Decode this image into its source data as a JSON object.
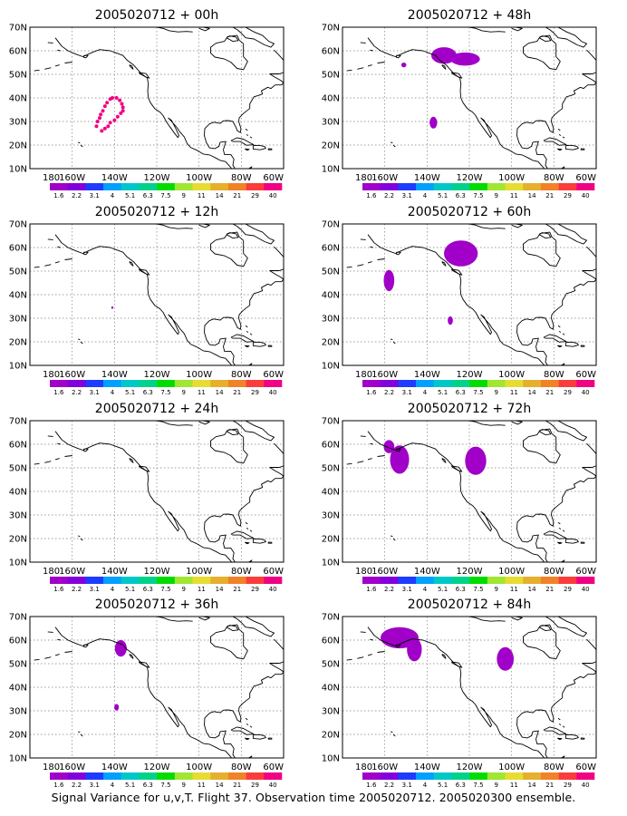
{
  "colorbar": {
    "labels": [
      "1.6",
      "2.2",
      "3.1",
      "4",
      "5.1",
      "6.3",
      "7.5",
      "9",
      "11",
      "14",
      "21",
      "29",
      "40"
    ],
    "colors": [
      "#a000c8",
      "#8200dc",
      "#1e3cff",
      "#00a0ff",
      "#00c8c8",
      "#00d28c",
      "#00dc00",
      "#a0e632",
      "#e6dc32",
      "#e6af2d",
      "#f08228",
      "#fa3c3c",
      "#f00082"
    ]
  },
  "axes": {
    "lon_labels": [
      "180",
      "160W",
      "140W",
      "120W",
      "100W",
      "80W",
      "60W"
    ],
    "lat_labels": [
      "10N",
      "20N",
      "30N",
      "40N",
      "50N",
      "60N",
      "70N"
    ],
    "lon_range": [
      -180,
      -60
    ],
    "lat_range": [
      10,
      70
    ]
  },
  "panels": [
    {
      "title": "2005020712 + 00h",
      "blobs": [],
      "dots": [
        [
          -141,
          40
        ],
        [
          -139,
          40
        ],
        [
          -137.5,
          39
        ],
        [
          -136.5,
          37.5
        ],
        [
          -136,
          36
        ],
        [
          -136,
          34.5
        ],
        [
          -137,
          33.5
        ],
        [
          -138.5,
          32
        ],
        [
          -140,
          30.5
        ],
        [
          -142,
          29.5
        ],
        [
          -143,
          28
        ],
        [
          -144.5,
          27
        ],
        [
          -146,
          26
        ],
        [
          -142,
          39.5
        ],
        [
          -143.5,
          38
        ],
        [
          -144.5,
          36.5
        ],
        [
          -145.5,
          34.5
        ],
        [
          -146.5,
          33
        ],
        [
          -147,
          31.5
        ],
        [
          -148,
          30
        ],
        [
          -148.5,
          28
        ]
      ]
    },
    {
      "title": "2005020712 + 48h",
      "blobs": [
        {
          "cx": -132,
          "cy": 58,
          "rx": 6,
          "ry": 3.5
        },
        {
          "cx": -122,
          "cy": 56.5,
          "rx": 7,
          "ry": 2.8
        },
        {
          "cx": -151,
          "cy": 54,
          "rx": 1.2,
          "ry": 1
        },
        {
          "cx": -137,
          "cy": 29.5,
          "rx": 1.8,
          "ry": 2.5
        }
      ],
      "dots": []
    },
    {
      "title": "2005020712 + 12h",
      "blobs": [
        {
          "cx": -141,
          "cy": 34.5,
          "rx": 0.5,
          "ry": 0.5
        }
      ],
      "dots": []
    },
    {
      "title": "2005020712 + 60h",
      "blobs": [
        {
          "cx": -124,
          "cy": 57.5,
          "rx": 8,
          "ry": 5.5
        },
        {
          "cx": -158,
          "cy": 46,
          "rx": 2.5,
          "ry": 4.5
        },
        {
          "cx": -129,
          "cy": 29,
          "rx": 1.2,
          "ry": 1.8
        }
      ],
      "dots": []
    },
    {
      "title": "2005020712 + 24h",
      "blobs": [],
      "dots": []
    },
    {
      "title": "2005020712 + 72h",
      "blobs": [
        {
          "cx": -158,
          "cy": 59,
          "rx": 2.5,
          "ry": 2.8
        },
        {
          "cx": -153,
          "cy": 53.5,
          "rx": 4.5,
          "ry": 6
        },
        {
          "cx": -117,
          "cy": 53,
          "rx": 5,
          "ry": 6
        }
      ],
      "dots": []
    },
    {
      "title": "2005020712 + 36h",
      "blobs": [
        {
          "cx": -137,
          "cy": 56.5,
          "rx": 2.8,
          "ry": 3.5
        },
        {
          "cx": -139,
          "cy": 31.5,
          "rx": 1.1,
          "ry": 1.4
        }
      ],
      "dots": []
    },
    {
      "title": "2005020712 + 84h",
      "blobs": [
        {
          "cx": -153,
          "cy": 61,
          "rx": 9,
          "ry": 4.5
        },
        {
          "cx": -146,
          "cy": 56,
          "rx": 3.5,
          "ry": 5
        },
        {
          "cx": -103,
          "cy": 52,
          "rx": 4,
          "ry": 5
        }
      ],
      "dots": []
    }
  ],
  "caption": "Signal Variance for u,v,T. Flight 37. Observation time 2005020712. 2005020300 ensemble."
}
